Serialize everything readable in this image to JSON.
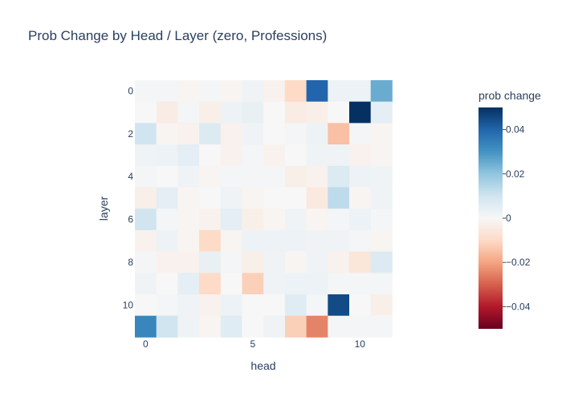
{
  "chart_data": {
    "type": "heatmap",
    "title": "Prob Change by Head / Layer (zero, Professions)",
    "xlabel": "head",
    "ylabel": "layer",
    "x": [
      0,
      1,
      2,
      3,
      4,
      5,
      6,
      7,
      8,
      9,
      10,
      11
    ],
    "y": [
      0,
      1,
      2,
      3,
      4,
      5,
      6,
      7,
      8,
      9,
      10,
      11
    ],
    "x_ticks": [
      0,
      5,
      10
    ],
    "y_ticks": [
      0,
      2,
      4,
      6,
      8,
      10
    ],
    "z": [
      [
        0.001,
        0.001,
        -0.001,
        0.001,
        -0.001,
        0.002,
        -0.002,
        -0.01,
        0.04,
        0.003,
        0.003,
        0.025
      ],
      [
        0.0,
        -0.004,
        0.001,
        -0.003,
        0.003,
        0.004,
        0.0,
        -0.004,
        -0.003,
        0.0,
        0.05,
        0.005
      ],
      [
        0.01,
        -0.001,
        -0.002,
        0.007,
        -0.002,
        0.002,
        0.0,
        0.001,
        0.003,
        -0.015,
        0.001,
        -0.001
      ],
      [
        0.002,
        0.003,
        0.005,
        0.0,
        -0.002,
        0.001,
        -0.002,
        0.0,
        0.002,
        0.002,
        -0.002,
        -0.001
      ],
      [
        0.001,
        0.0,
        0.002,
        -0.001,
        0.001,
        0.001,
        0.001,
        -0.003,
        -0.002,
        0.007,
        0.003,
        0.002
      ],
      [
        -0.003,
        0.005,
        -0.001,
        0.0,
        0.002,
        -0.001,
        0.0,
        0.0,
        -0.005,
        0.013,
        -0.001,
        0.002
      ],
      [
        0.01,
        0.001,
        -0.001,
        -0.002,
        0.005,
        -0.003,
        -0.001,
        0.002,
        -0.001,
        0.001,
        0.003,
        0.001
      ],
      [
        -0.002,
        0.003,
        -0.001,
        -0.01,
        -0.001,
        0.003,
        0.003,
        0.003,
        0.002,
        0.002,
        0.001,
        -0.001
      ],
      [
        0.001,
        -0.002,
        -0.002,
        0.004,
        0.001,
        -0.003,
        0.002,
        -0.001,
        0.002,
        -0.002,
        -0.006,
        0.007
      ],
      [
        0.002,
        0.0,
        0.005,
        -0.01,
        0.0,
        -0.012,
        0.002,
        0.003,
        0.003,
        0.001,
        0.001,
        0.001
      ],
      [
        0.0,
        0.001,
        0.002,
        -0.002,
        0.003,
        0.0,
        0.0,
        0.006,
        0.001,
        0.045,
        0.0,
        -0.003
      ],
      [
        0.033,
        0.01,
        0.002,
        -0.001,
        0.006,
        0.0,
        0.002,
        -0.012,
        -0.025,
        0.001,
        0.001,
        0.001
      ]
    ],
    "zmin": -0.05,
    "zmax": 0.05,
    "colorbar": {
      "title": "prob change",
      "ticks": [
        0.04,
        0.02,
        0,
        -0.02,
        -0.04
      ],
      "tick_labels": [
        "0.04",
        "0.02",
        "0",
        "−0.02",
        "−0.04"
      ]
    },
    "colorscale": [
      [
        0.0,
        "#67001f"
      ],
      [
        0.1,
        "#b2182b"
      ],
      [
        0.2,
        "#d6604d"
      ],
      [
        0.3,
        "#f4a582"
      ],
      [
        0.4,
        "#fddbc7"
      ],
      [
        0.5,
        "#f7f7f7"
      ],
      [
        0.6,
        "#d1e5f0"
      ],
      [
        0.7,
        "#92c5de"
      ],
      [
        0.8,
        "#4393c3"
      ],
      [
        0.9,
        "#2166ac"
      ],
      [
        1.0,
        "#053061"
      ]
    ]
  }
}
